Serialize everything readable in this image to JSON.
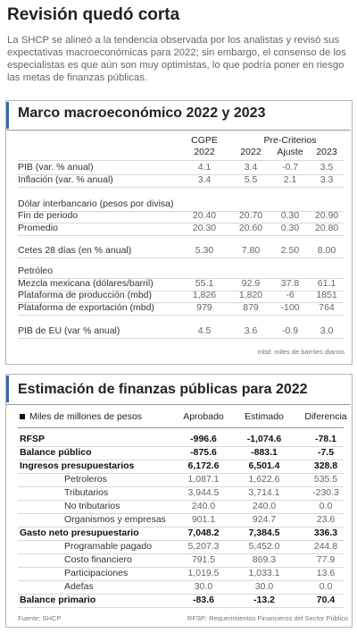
{
  "title": "Revisión quedó corta",
  "intro": "La SHCP se alineó a la tendencia observada por los analistas y revisó sus expectativas macroeconómicas para 2022; sin embargo, el consenso de los especialistas es que aún son muy optimistas, lo que podría poner en riesgo las metas de finanzas públicas.",
  "macro": {
    "title": "Marco macroeconómico 2022 y 2023",
    "header": {
      "cgpe": "CGPE",
      "cgpe_year": "2022",
      "precriterios": "Pre-Criterios",
      "columns": [
        "2022",
        "Ajuste",
        "2023"
      ]
    },
    "rows": [
      {
        "label": "PIB (var. % anual)",
        "values": [
          "4.1",
          "3.4",
          "-0.7",
          "3.5"
        ]
      },
      {
        "label": "Inflación (var. % anual)",
        "values": [
          "3.4",
          "5.5",
          "2.1",
          "3.3"
        ]
      },
      {
        "label": "Dólar interbancario (pesos por divisa)"
      },
      {
        "label": "Fin de periodo",
        "values": [
          "20.40",
          "20.70",
          "0.30",
          "20.90"
        ]
      },
      {
        "label": "Promedio",
        "values": [
          "20.30",
          "20.60",
          "0.30",
          "20.80"
        ]
      },
      {
        "label": "Cetes 28 días (en % anual)",
        "values": [
          "5.30",
          "7.80",
          "2.50",
          "8.00"
        ]
      },
      {
        "label": "Petróleo"
      },
      {
        "label": "Mezcla mexicana (dólares/barril)",
        "values": [
          "55.1",
          "92.9",
          "37.8",
          "61.1"
        ]
      },
      {
        "label": "Plataforma de producción (mbd)",
        "values": [
          "1,826",
          "1,820",
          "-6",
          "1851"
        ]
      },
      {
        "label": "Plataforma de exportación (mbd)",
        "values": [
          "979",
          "879",
          "-100",
          "764"
        ]
      },
      {
        "label": "PIB de EU (var % anual)",
        "values": [
          "4.5",
          "3.6",
          "-0.9",
          "3.0"
        ]
      }
    ],
    "note": "mbd: miles de barriles diarios"
  },
  "finanzas": {
    "title": "Estimación de finanzas públicas para 2022",
    "header": [
      "Miles de millones de pesos",
      "Aprobado",
      "Estimado",
      "Diferencia"
    ],
    "rows": [
      {
        "label": "RFSP",
        "values": [
          "-996.6",
          "-1,074.6",
          "-78.1"
        ],
        "bold": true
      },
      {
        "label": "Balance público",
        "values": [
          "-875.6",
          "-883.1",
          "-7.5"
        ],
        "bold": true
      },
      {
        "label": "Ingresos presupuestarios",
        "values": [
          "6,172.6",
          "6,501.4",
          "328.8"
        ],
        "bold": true
      },
      {
        "label": "Petroleros",
        "values": [
          "1,087.1",
          "1,622.6",
          "535.5"
        ],
        "indent": true
      },
      {
        "label": "Tributarios",
        "values": [
          "3,944.5",
          "3,714.1",
          "-230.3"
        ],
        "indent": true
      },
      {
        "label": "No tributarios",
        "values": [
          "240.0",
          "240.0",
          "0.0"
        ],
        "indent": true
      },
      {
        "label": "Organismos y empresas",
        "values": [
          "901.1",
          "924.7",
          "23.6"
        ],
        "indent": true
      },
      {
        "label": "Gasto neto presupuestario",
        "values": [
          "7,048.2",
          "7,384.5",
          "336.3"
        ],
        "bold": true
      },
      {
        "label": "Programable pagado",
        "values": [
          "5,207.3",
          "5,452.0",
          "244.8"
        ],
        "indent": true
      },
      {
        "label": "Costo financiero",
        "values": [
          "791.5",
          "869.3",
          "77.9"
        ],
        "indent": true
      },
      {
        "label": "Participaciones",
        "values": [
          "1,019.5",
          "1,033.1",
          "13.6"
        ],
        "indent": true
      },
      {
        "label": "Adefas",
        "values": [
          "30.0",
          "30.0",
          "0.0"
        ],
        "indent": true
      },
      {
        "label": "Balance primario",
        "values": [
          "-83.6",
          "-13.2",
          "70.4"
        ],
        "bold": true
      }
    ]
  },
  "footer": {
    "source": "Fuente: SHCP",
    "note": "RFSP: Requerimientos Financieros del Sector Público"
  }
}
